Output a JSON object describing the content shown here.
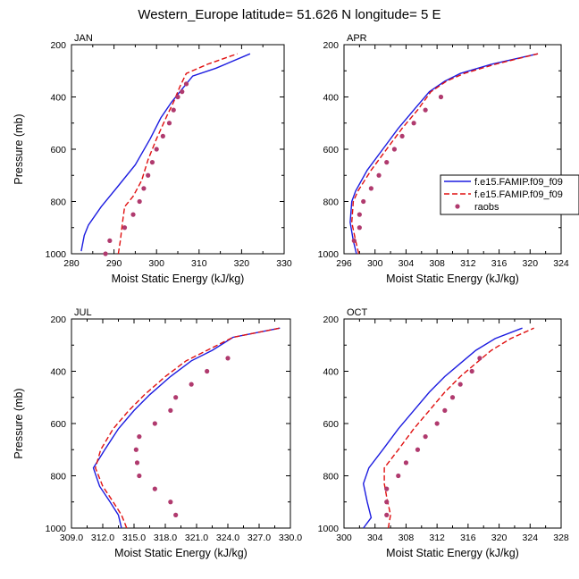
{
  "title": "Western_Europe  latitude= 51.626 N longitude= 5 E",
  "colors": {
    "model1": "#1c1ce0",
    "model2": "#e01010",
    "raobs": "#b03a6e"
  },
  "legend": {
    "position": "right of APR panel",
    "entries": [
      "f.e15.FAMIP.f09_f09",
      "f.e15.FAMIP.f09_f09",
      "raobs"
    ]
  },
  "chart_data": [
    {
      "type": "line",
      "panel": "JAN",
      "xlabel": "Moist Static Energy (kJ/kg)",
      "ylabel": "Pressure (mb)",
      "xlim": [
        280,
        330
      ],
      "ylim": [
        1000,
        200
      ],
      "y_reversed": true,
      "xticks": [
        "280",
        "290",
        "300",
        "310",
        "320",
        "330"
      ],
      "yticks": [
        "200",
        "400",
        "600",
        "800",
        "1000"
      ],
      "series": [
        {
          "name": "f.e15.FAMIP.f09_f09",
          "style": "solid",
          "points": [
            [
              282.3,
              990
            ],
            [
              283,
              930
            ],
            [
              284,
              890
            ],
            [
              287,
              820
            ],
            [
              291,
              740
            ],
            [
              295,
              660
            ],
            [
              298.5,
              560
            ],
            [
              301,
              480
            ],
            [
              303.5,
              420
            ],
            [
              306,
              370
            ],
            [
              308.5,
              320
            ],
            [
              314,
              290
            ],
            [
              322,
              235
            ]
          ]
        },
        {
          "name": "f.e15.FAMIP.f09_f09",
          "style": "dashed",
          "points": [
            [
              291,
              1000
            ],
            [
              291.5,
              950
            ],
            [
              292,
              880
            ],
            [
              292.5,
              820
            ],
            [
              294.5,
              780
            ],
            [
              296.5,
              720
            ],
            [
              298,
              640
            ],
            [
              300,
              560
            ],
            [
              302.5,
              470
            ],
            [
              304,
              420
            ],
            [
              305.5,
              360
            ],
            [
              307,
              310
            ],
            [
              312,
              275
            ],
            [
              319,
              235
            ]
          ]
        },
        {
          "name": "raobs",
          "style": "dots",
          "points": [
            [
              288,
              1000
            ],
            [
              289,
              950
            ],
            [
              292.5,
              900
            ],
            [
              294.5,
              850
            ],
            [
              296,
              800
            ],
            [
              297,
              750
            ],
            [
              298,
              700
            ],
            [
              299,
              650
            ],
            [
              300,
              600
            ],
            [
              301.5,
              550
            ],
            [
              303,
              500
            ],
            [
              304,
              450
            ],
            [
              305,
              400
            ],
            [
              306,
              380
            ],
            [
              307,
              350
            ]
          ]
        }
      ]
    },
    {
      "type": "line",
      "panel": "APR",
      "xlabel": "Moist Static Energy (kJ/kg)",
      "ylabel": "",
      "xlim": [
        296,
        324
      ],
      "ylim": [
        1000,
        200
      ],
      "y_reversed": true,
      "xticks": [
        "296",
        "300",
        "304",
        "308",
        "312",
        "316",
        "320",
        "324"
      ],
      "yticks": [
        "200",
        "400",
        "600",
        "800",
        "1000"
      ],
      "series": [
        {
          "name": "f.e15.FAMIP.f09_f09",
          "style": "solid",
          "points": [
            [
              297.6,
              1000
            ],
            [
              297.2,
              950
            ],
            [
              296.8,
              880
            ],
            [
              297,
              800
            ],
            [
              297.5,
              760
            ],
            [
              299,
              680
            ],
            [
              301,
              600
            ],
            [
              303,
              520
            ],
            [
              305,
              450
            ],
            [
              307,
              380
            ],
            [
              309,
              340
            ],
            [
              311,
              310
            ],
            [
              315,
              275
            ],
            [
              321,
              235
            ]
          ]
        },
        {
          "name": "f.e15.FAMIP.f09_f09",
          "style": "dashed",
          "points": [
            [
              297.9,
              1000
            ],
            [
              297.5,
              950
            ],
            [
              297,
              880
            ],
            [
              297.2,
              800
            ],
            [
              297.8,
              760
            ],
            [
              299.5,
              680
            ],
            [
              301.5,
              600
            ],
            [
              303.5,
              520
            ],
            [
              305.5,
              450
            ],
            [
              307.2,
              380
            ],
            [
              309.2,
              340
            ],
            [
              311.5,
              310
            ],
            [
              315.5,
              275
            ],
            [
              321,
              235
            ]
          ]
        },
        {
          "name": "raobs",
          "style": "dots",
          "points": [
            [
              297.3,
              950
            ],
            [
              298,
              900
            ],
            [
              298,
              850
            ],
            [
              298.5,
              800
            ],
            [
              299.5,
              750
            ],
            [
              300.5,
              700
            ],
            [
              301.5,
              650
            ],
            [
              302.5,
              600
            ],
            [
              303.5,
              550
            ],
            [
              305,
              500
            ],
            [
              306.5,
              450
            ],
            [
              308.5,
              400
            ]
          ]
        }
      ]
    },
    {
      "type": "line",
      "panel": "JUL",
      "xlabel": "Moist Static Energy (kJ/kg)",
      "ylabel": "Pressure (mb)",
      "xlim": [
        309,
        330
      ],
      "ylim": [
        1000,
        200
      ],
      "y_reversed": true,
      "xticks": [
        "309.0",
        "312.0",
        "315.0",
        "318.0",
        "321.0",
        "324.0",
        "327.0",
        "330.0"
      ],
      "yticks": [
        "200",
        "400",
        "600",
        "800",
        "1000"
      ],
      "series": [
        {
          "name": "f.e15.FAMIP.f09_f09",
          "style": "solid",
          "points": [
            [
              313.8,
              1000
            ],
            [
              313.5,
              950
            ],
            [
              312.7,
              900
            ],
            [
              311.7,
              840
            ],
            [
              311.1,
              770
            ],
            [
              312.2,
              700
            ],
            [
              313.5,
              620
            ],
            [
              315,
              550
            ],
            [
              316.5,
              490
            ],
            [
              318.5,
              420
            ],
            [
              320.5,
              360
            ],
            [
              322.5,
              320
            ],
            [
              324.5,
              270
            ],
            [
              329,
              235
            ]
          ]
        },
        {
          "name": "f.e15.FAMIP.f09_f09",
          "style": "dashed",
          "points": [
            [
              314.3,
              1000
            ],
            [
              313.8,
              950
            ],
            [
              313,
              900
            ],
            [
              312,
              840
            ],
            [
              311.3,
              770
            ],
            [
              311.8,
              700
            ],
            [
              313,
              620
            ],
            [
              314.5,
              550
            ],
            [
              316,
              490
            ],
            [
              318,
              420
            ],
            [
              320,
              360
            ],
            [
              322,
              320
            ],
            [
              324.5,
              270
            ],
            [
              329,
              235
            ]
          ]
        },
        {
          "name": "raobs",
          "style": "dots",
          "points": [
            [
              319,
              950
            ],
            [
              318.5,
              900
            ],
            [
              317,
              850
            ],
            [
              315.5,
              800
            ],
            [
              315.3,
              750
            ],
            [
              315.2,
              700
            ],
            [
              315.5,
              650
            ],
            [
              317,
              600
            ],
            [
              318.5,
              550
            ],
            [
              319,
              500
            ],
            [
              320.5,
              450
            ],
            [
              322,
              400
            ],
            [
              324,
              350
            ]
          ]
        }
      ]
    },
    {
      "type": "line",
      "panel": "OCT",
      "xlabel": "Moist Static Energy (kJ/kg)",
      "ylabel": "",
      "xlim": [
        300,
        328
      ],
      "ylim": [
        1000,
        200
      ],
      "y_reversed": true,
      "xticks": [
        "300",
        "304",
        "308",
        "312",
        "316",
        "320",
        "324",
        "328"
      ],
      "yticks": [
        "200",
        "400",
        "600",
        "800",
        "1000"
      ],
      "series": [
        {
          "name": "f.e15.FAMIP.f09_f09",
          "style": "solid",
          "points": [
            [
              302.5,
              1000
            ],
            [
              303.5,
              960
            ],
            [
              303,
              900
            ],
            [
              302.5,
              830
            ],
            [
              303.2,
              770
            ],
            [
              305,
              700
            ],
            [
              307,
              620
            ],
            [
              309,
              550
            ],
            [
              311,
              480
            ],
            [
              313,
              420
            ],
            [
              315,
              370
            ],
            [
              317,
              320
            ],
            [
              319.5,
              275
            ],
            [
              323,
              235
            ]
          ]
        },
        {
          "name": "f.e15.FAMIP.f09_f09",
          "style": "dashed",
          "points": [
            [
              305.7,
              1000
            ],
            [
              306,
              950
            ],
            [
              305.5,
              880
            ],
            [
              305.2,
              830
            ],
            [
              305.2,
              770
            ],
            [
              307,
              700
            ],
            [
              309,
              620
            ],
            [
              311,
              550
            ],
            [
              313,
              480
            ],
            [
              315,
              420
            ],
            [
              317,
              370
            ],
            [
              319,
              320
            ],
            [
              321.5,
              275
            ],
            [
              324.5,
              235
            ]
          ]
        },
        {
          "name": "raobs",
          "style": "dots",
          "points": [
            [
              305.5,
              950
            ],
            [
              305.5,
              900
            ],
            [
              305.5,
              850
            ],
            [
              307,
              800
            ],
            [
              308,
              750
            ],
            [
              309.5,
              700
            ],
            [
              310.5,
              650
            ],
            [
              312,
              600
            ],
            [
              313,
              550
            ],
            [
              314,
              500
            ],
            [
              315,
              450
            ],
            [
              316.5,
              400
            ],
            [
              317.5,
              350
            ]
          ]
        }
      ]
    }
  ]
}
